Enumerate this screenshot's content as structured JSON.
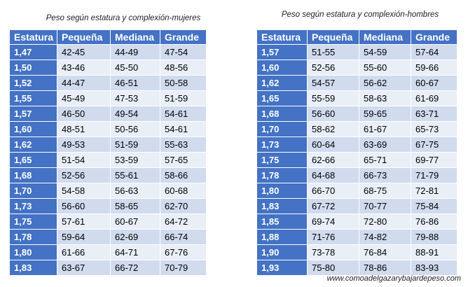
{
  "women": {
    "caption": "Peso según estatura y complexión-mujeres",
    "headers": [
      "Estatura",
      "Pequeña",
      "Mediana",
      "Grande"
    ],
    "rows": [
      [
        "1,47",
        "42-45",
        "44-49",
        "47-54"
      ],
      [
        "1,50",
        "43-46",
        "45-50",
        "48-56"
      ],
      [
        "1,52",
        "44-47",
        "46-51",
        "50-58"
      ],
      [
        "1,55",
        "45-49",
        "47-53",
        "51-59"
      ],
      [
        "1,57",
        "46-50",
        "49-54",
        "54-61"
      ],
      [
        "1,60",
        "48-51",
        "50-56",
        "54-61"
      ],
      [
        "1,62",
        "49-53",
        "51-59",
        "55-63"
      ],
      [
        "1,65",
        "51-54",
        "53-59",
        "57-65"
      ],
      [
        "1,68",
        "52-56",
        "55-61",
        "58-66"
      ],
      [
        "1,70",
        "54-58",
        "56-63",
        "60-68"
      ],
      [
        "1,73",
        "56-60",
        "58-65",
        "62-70"
      ],
      [
        "1,75",
        "57-61",
        "60-67",
        "64-72"
      ],
      [
        "1,78",
        "59-64",
        "62-69",
        "66-74"
      ],
      [
        "1,80",
        "61-66",
        "64-71",
        "67-76"
      ],
      [
        "1,83",
        "63-67",
        "66-72",
        "70-79"
      ]
    ]
  },
  "men": {
    "caption": "Peso según estatura y complexión-hombres",
    "headers": [
      "Estatura",
      "Pequeña",
      "Mediana",
      "Grande"
    ],
    "rows": [
      [
        "1,57",
        "51-55",
        "54-59",
        "57-64"
      ],
      [
        "1,60",
        "52-56",
        "55-60",
        "59-66"
      ],
      [
        "1,62",
        "54-57",
        "56-62",
        "60-67"
      ],
      [
        "1,65",
        "55-59",
        "58-63",
        "61-69"
      ],
      [
        "1,68",
        "56-60",
        "59-65",
        "63-71"
      ],
      [
        "1,70",
        "58-62",
        "61-67",
        "65-73"
      ],
      [
        "1,73",
        "60-64",
        "63-69",
        "67-75"
      ],
      [
        "1,75",
        "62-66",
        "65-71",
        "69-77"
      ],
      [
        "1,78",
        "64-68",
        "66-73",
        "71-79"
      ],
      [
        "1,80",
        "66-70",
        "68-75",
        "72-81"
      ],
      [
        "1,83",
        "67-72",
        "70-77",
        "75-84"
      ],
      [
        "1,85",
        "69-74",
        "72-80",
        "76-86"
      ],
      [
        "1,88",
        "71-76",
        "74-82",
        "79-88"
      ],
      [
        "1,90",
        "73-78",
        "76-84",
        "88-91"
      ],
      [
        "1,93",
        "75-80",
        "78-86",
        "83-93"
      ]
    ]
  },
  "footer": "www.comoadelgazarybajardepeso.com"
}
